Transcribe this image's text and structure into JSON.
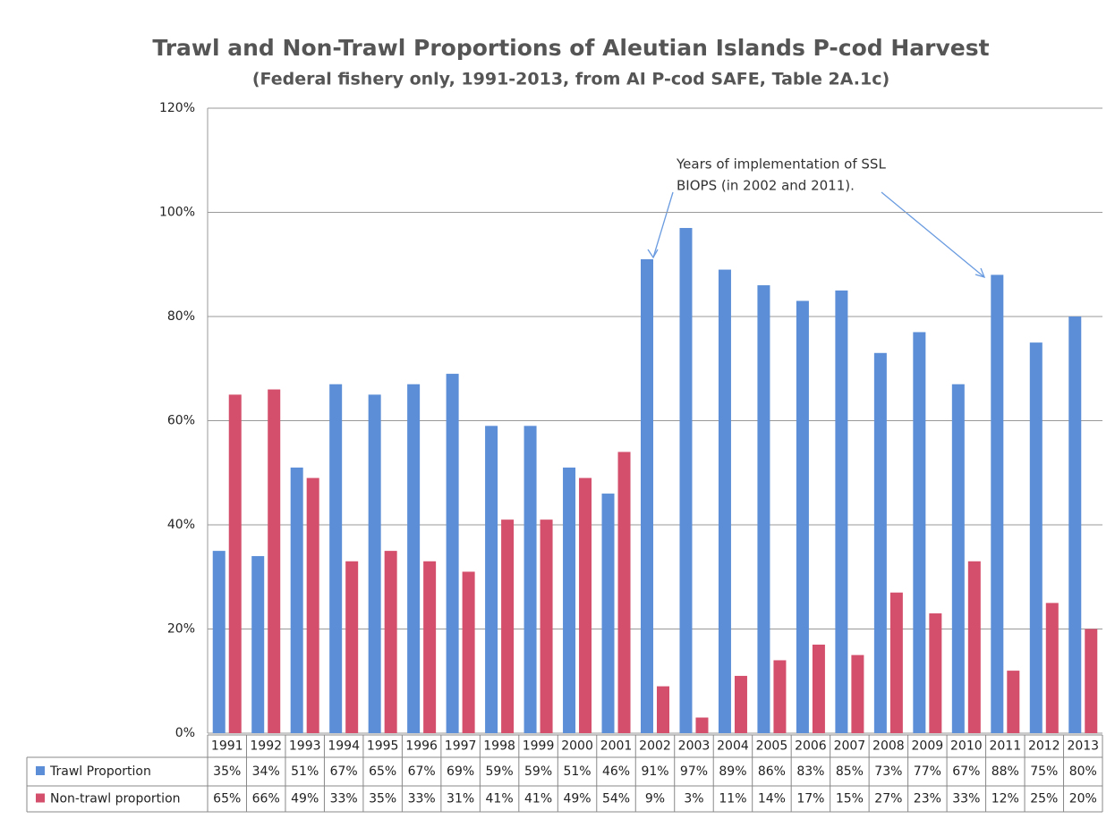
{
  "chart_data": {
    "type": "bar",
    "title": "Trawl and Non-Trawl Proportions of  Aleutian Islands P-cod Harvest",
    "subtitle": "(Federal fishery only, 1991-2013, from AI P-cod SAFE, Table 2A.1c)",
    "annotation": [
      "Years of implementation of SSL",
      "BIOPS  (in 2002 and 2011)."
    ],
    "categories": [
      "1991",
      "1992",
      "1993",
      "1994",
      "1995",
      "1996",
      "1997",
      "1998",
      "1999",
      "2000",
      "2001",
      "2002",
      "2003",
      "2004",
      "2005",
      "2006",
      "2007",
      "2008",
      "2009",
      "2010",
      "2011",
      "2012",
      "2013"
    ],
    "series": [
      {
        "name": "Trawl Proportion",
        "color": "#5b8ed6",
        "values": [
          35,
          34,
          51,
          67,
          65,
          67,
          69,
          59,
          59,
          51,
          46,
          91,
          97,
          89,
          86,
          83,
          85,
          73,
          77,
          67,
          88,
          75,
          80
        ],
        "value_labels": [
          "35%",
          "34%",
          "51%",
          "67%",
          "65%",
          "67%",
          "69%",
          "59%",
          "59%",
          "51%",
          "46%",
          "91%",
          "97%",
          "89%",
          "86%",
          "83%",
          "85%",
          "73%",
          "77%",
          "67%",
          "88%",
          "75%",
          "80%"
        ]
      },
      {
        "name": "Non-trawl proportion",
        "color": "#d44f6b",
        "values": [
          65,
          66,
          49,
          33,
          35,
          33,
          31,
          41,
          41,
          49,
          54,
          9,
          3,
          11,
          14,
          17,
          15,
          27,
          23,
          33,
          12,
          25,
          20
        ],
        "value_labels": [
          "65%",
          "66%",
          "49%",
          "33%",
          "35%",
          "33%",
          "31%",
          "41%",
          "41%",
          "49%",
          "54%",
          "9%",
          "3%",
          "11%",
          "14%",
          "17%",
          "15%",
          "27%",
          "23%",
          "33%",
          "12%",
          "25%",
          "20%"
        ]
      }
    ],
    "ylim": [
      0,
      120
    ],
    "yticks": [
      {
        "value": 0,
        "label": "0%"
      },
      {
        "value": 20,
        "label": "20%"
      },
      {
        "value": 40,
        "label": "40%"
      },
      {
        "value": 60,
        "label": "60%"
      },
      {
        "value": 80,
        "label": "80%"
      },
      {
        "value": 100,
        "label": "100%"
      },
      {
        "value": 120,
        "label": "120%"
      }
    ],
    "grid": true
  }
}
